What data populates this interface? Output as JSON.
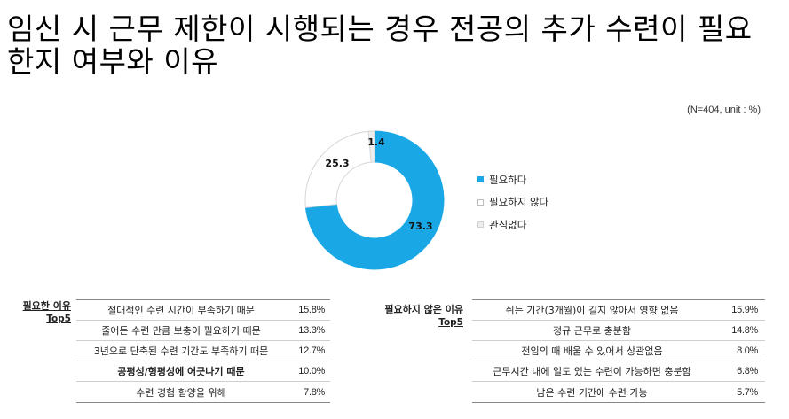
{
  "title": "임신 시 근무 제한이 시행되는 경우 전공의 추가 수련이 필요한지 여부와 이유",
  "note": "(N=404, unit : %)",
  "chart_data": {
    "type": "pie",
    "categories": [
      "필요하다",
      "필요하지 않다",
      "관심없다"
    ],
    "values": [
      73.3,
      25.3,
      1.4
    ],
    "data_labels": [
      "73.3",
      "25.3",
      "1.4"
    ],
    "colors": [
      "#1aa7e6",
      "#ffffff",
      "#eeeeee"
    ],
    "legend_position": "right"
  },
  "legend": [
    {
      "label": "필요하다",
      "color": "#1aa7e6"
    },
    {
      "label": "필요하지 않다",
      "color": "#ffffff"
    },
    {
      "label": "관심없다",
      "color": "#eeeeee"
    }
  ],
  "left_section": {
    "label": "필요한 이유",
    "sub": "Top5",
    "rows": [
      {
        "text": "절대적인 수련 시간이 부족하기 때문",
        "value": "15.8%"
      },
      {
        "text": "줄어든 수련 만큼 보충이 필요하기 때문",
        "value": "13.3%"
      },
      {
        "text": "3년으로 단축된 수련 기간도 부족하기 때문",
        "value": "12.7%"
      },
      {
        "text": "공평성/형평성에 어긋나기 때문",
        "value": "10.0%"
      },
      {
        "text": "수련 경험 함양을 위해",
        "value": "7.8%"
      }
    ]
  },
  "right_section": {
    "label": "필요하지 않은 이유",
    "sub": "Top5",
    "rows": [
      {
        "text": "쉬는 기간(3개월)이 길지 않아서 영향 없음",
        "value": "15.9%"
      },
      {
        "text": "정규 근무로 충분함",
        "value": "14.8%"
      },
      {
        "text": "전임의 때 배울 수 있어서 상관없음",
        "value": "8.0%"
      },
      {
        "text": "근무시간 내에 일도 있는 수련이 가능하면 충분함",
        "value": "6.8%"
      },
      {
        "text": "남은 수련 기간에 수련 가능",
        "value": "5.7%"
      }
    ]
  }
}
